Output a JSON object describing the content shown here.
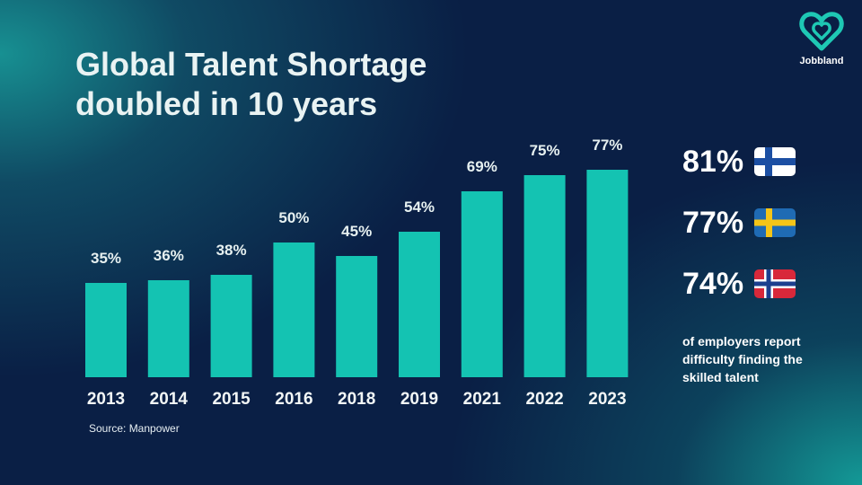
{
  "title": {
    "line1": "Global Talent Shortage",
    "line2": "doubled in 10 years"
  },
  "brand": {
    "name": "Jobbland",
    "icon": "heart-logo-icon",
    "color": "#1ec8b4"
  },
  "colors": {
    "bar": "#14c3b2",
    "background": "#0a1f45",
    "accent": "#1ec8b4"
  },
  "chart_data": {
    "type": "bar",
    "categories": [
      "2013",
      "2014",
      "2015",
      "2016",
      "2018",
      "2019",
      "2021",
      "2022",
      "2023"
    ],
    "values": [
      35,
      36,
      38,
      50,
      45,
      54,
      69,
      75,
      77
    ],
    "data_labels": [
      "35%",
      "36%",
      "38%",
      "50%",
      "45%",
      "54%",
      "69%",
      "75%",
      "77%"
    ],
    "unit": "%",
    "grid": false,
    "legend": "none"
  },
  "source": "Source: Manpower",
  "stats": [
    {
      "value": "81%",
      "flag": "finland-flag-icon"
    },
    {
      "value": "77%",
      "flag": "sweden-flag-icon"
    },
    {
      "value": "74%",
      "flag": "norway-flag-icon"
    }
  ],
  "note": "of employers report difficulty finding the skilled talent"
}
